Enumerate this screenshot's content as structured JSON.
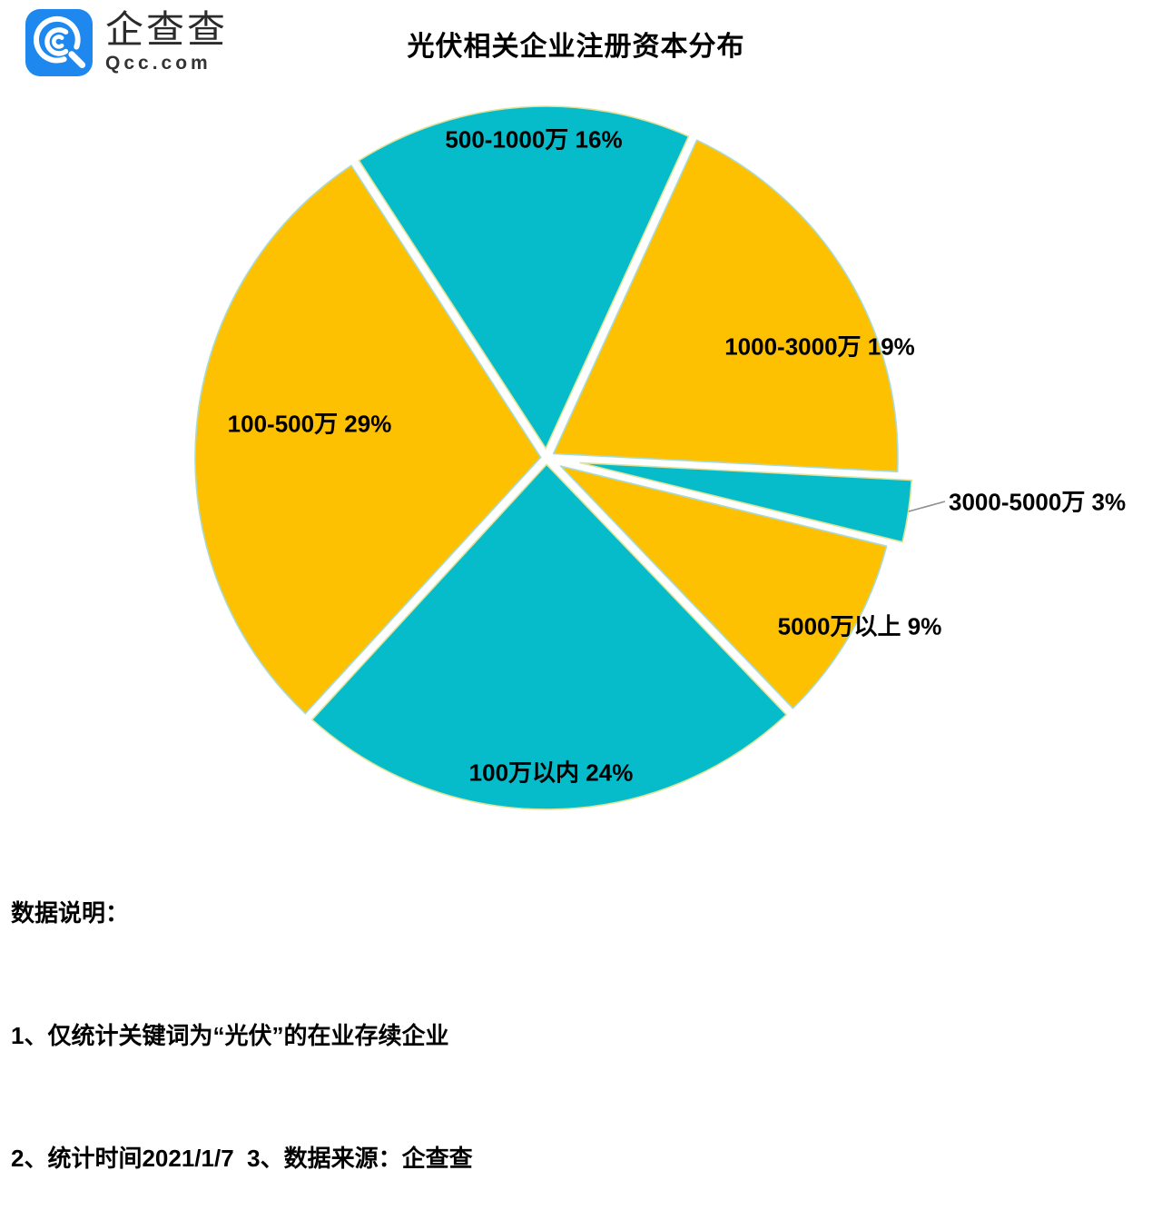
{
  "logo": {
    "icon": "qcc-magnifier-icon",
    "name_cn": "企查查",
    "domain": "Qcc.com",
    "brand_color": "#1e88ee"
  },
  "title": "光伏相关企业注册资本分布",
  "chart_data": {
    "type": "pie",
    "title": "光伏相关企业注册资本分布",
    "start_angle_deg_from_12oclock": -33,
    "direction": "clockwise",
    "legend_position": "labels-on-slices",
    "colors": {
      "teal": "#06bccb",
      "yellow": "#fec101"
    },
    "categories": [
      "500-1000万",
      "1000-3000万",
      "3000-5000万",
      "5000万以上",
      "100万以内",
      "100-500万"
    ],
    "values": [
      16,
      19,
      3,
      9,
      24,
      29
    ],
    "slices": [
      {
        "label": "500-1000万",
        "value": 16,
        "display": "500-1000万 16%",
        "color": "#06bccb"
      },
      {
        "label": "1000-3000万",
        "value": 19,
        "display": "1000-3000万 19%",
        "color": "#fec101"
      },
      {
        "label": "3000-5000万",
        "value": 3,
        "display": "3000-5000万 3%",
        "color": "#06bccb",
        "exploded": true
      },
      {
        "label": "5000万以上",
        "value": 9,
        "display": "5000万以上 9%",
        "color": "#fec101"
      },
      {
        "label": "100万以内",
        "value": 24,
        "display": "100万以内 24%",
        "color": "#06bccb"
      },
      {
        "label": "100-500万",
        "value": 29,
        "display": "100-500万 29%",
        "color": "#fec101"
      }
    ]
  },
  "notes": {
    "heading": "数据说明：",
    "line1": "1、仅统计关键词为“光伏”的在业存续企业",
    "line2": "2、统计时间2021/1/7  3、数据来源：企查查"
  }
}
